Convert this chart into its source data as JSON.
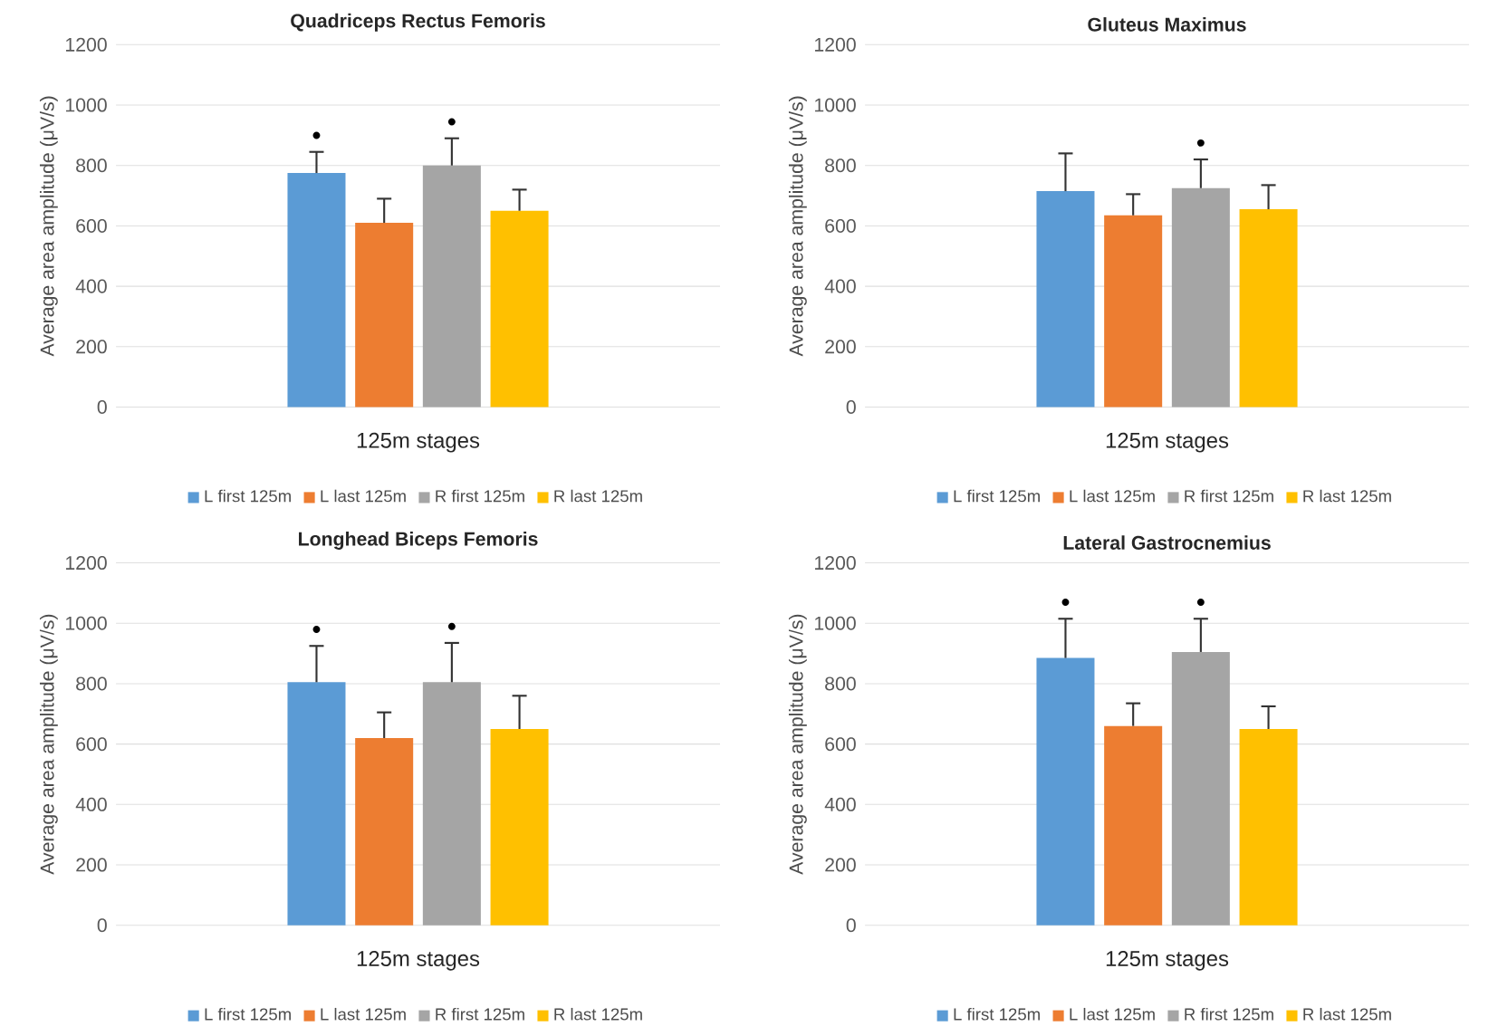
{
  "chart_data": [
    {
      "type": "bar",
      "title": "Quadriceps Rectus Femoris",
      "xlabel": "125m stages",
      "ylabel": "Average area amplitude (μV/s)",
      "categories": [
        null
      ],
      "ylim": [
        0,
        1200
      ],
      "yticks": [
        0,
        200,
        400,
        600,
        800,
        1000,
        1200
      ],
      "grid": "y",
      "legend": "bottom",
      "series": [
        {
          "name": "L first 125m",
          "color": "#5b9bd5",
          "values": [
            775
          ],
          "errors": [
            70
          ],
          "value_labels": [
            "•"
          ]
        },
        {
          "name": "L last 125m",
          "color": "#ed7d31",
          "values": [
            610
          ],
          "errors": [
            80
          ],
          "value_labels": [
            null
          ]
        },
        {
          "name": "R first 125m",
          "color": "#a5a5a5",
          "values": [
            800
          ],
          "errors": [
            90
          ],
          "value_labels": [
            "•"
          ]
        },
        {
          "name": "R last 125m",
          "color": "#ffc000",
          "values": [
            650
          ],
          "errors": [
            70
          ],
          "value_labels": [
            null
          ]
        }
      ]
    },
    {
      "type": "bar",
      "title": "Gluteus Maximus",
      "xlabel": "125m stages",
      "ylabel": "Average area amplitude (μV/s)",
      "categories": [
        null
      ],
      "ylim": [
        0,
        1200
      ],
      "yticks": [
        0,
        200,
        400,
        600,
        800,
        1000,
        1200
      ],
      "grid": "y",
      "legend": "bottom",
      "series": [
        {
          "name": "L first 125m",
          "color": "#5b9bd5",
          "values": [
            715
          ],
          "errors": [
            125
          ],
          "value_labels": [
            null
          ]
        },
        {
          "name": "L last 125m",
          "color": "#ed7d31",
          "values": [
            635
          ],
          "errors": [
            70
          ],
          "value_labels": [
            null
          ]
        },
        {
          "name": "R first 125m",
          "color": "#a5a5a5",
          "values": [
            725
          ],
          "errors": [
            95
          ],
          "value_labels": [
            "•"
          ]
        },
        {
          "name": "R last 125m",
          "color": "#ffc000",
          "values": [
            655
          ],
          "errors": [
            80
          ],
          "value_labels": [
            null
          ]
        }
      ]
    },
    {
      "type": "bar",
      "title": "Longhead Biceps Femoris",
      "xlabel": "125m stages",
      "ylabel": "Average area amplitude (μV/s)",
      "categories": [
        null
      ],
      "ylim": [
        0,
        1200
      ],
      "yticks": [
        0,
        200,
        400,
        600,
        800,
        1000,
        1200
      ],
      "grid": "y",
      "legend": "bottom",
      "series": [
        {
          "name": "L first 125m",
          "color": "#5b9bd5",
          "values": [
            805
          ],
          "errors": [
            120
          ],
          "value_labels": [
            "•"
          ]
        },
        {
          "name": "L last 125m",
          "color": "#ed7d31",
          "values": [
            620
          ],
          "errors": [
            85
          ],
          "value_labels": [
            null
          ]
        },
        {
          "name": "R first 125m",
          "color": "#a5a5a5",
          "values": [
            805
          ],
          "errors": [
            130
          ],
          "value_labels": [
            "•"
          ]
        },
        {
          "name": "R last 125m",
          "color": "#ffc000",
          "values": [
            650
          ],
          "errors": [
            110
          ],
          "value_labels": [
            null
          ]
        }
      ]
    },
    {
      "type": "bar",
      "title": "Lateral Gastrocnemius",
      "xlabel": "125m stages",
      "ylabel": "Average area amplitude (μV/s)",
      "categories": [
        null
      ],
      "ylim": [
        0,
        1200
      ],
      "yticks": [
        0,
        200,
        400,
        600,
        800,
        1000,
        1200
      ],
      "grid": "y",
      "legend": "bottom",
      "series": [
        {
          "name": "L first 125m",
          "color": "#5b9bd5",
          "values": [
            885
          ],
          "errors": [
            130
          ],
          "value_labels": [
            "•"
          ]
        },
        {
          "name": "L last 125m",
          "color": "#ed7d31",
          "values": [
            660
          ],
          "errors": [
            75
          ],
          "value_labels": [
            null
          ]
        },
        {
          "name": "R first 125m",
          "color": "#a5a5a5",
          "values": [
            905
          ],
          "errors": [
            110
          ],
          "value_labels": [
            "•"
          ]
        },
        {
          "name": "R last 125m",
          "color": "#ffc000",
          "values": [
            650
          ],
          "errors": [
            75
          ],
          "value_labels": [
            null
          ]
        }
      ]
    }
  ]
}
